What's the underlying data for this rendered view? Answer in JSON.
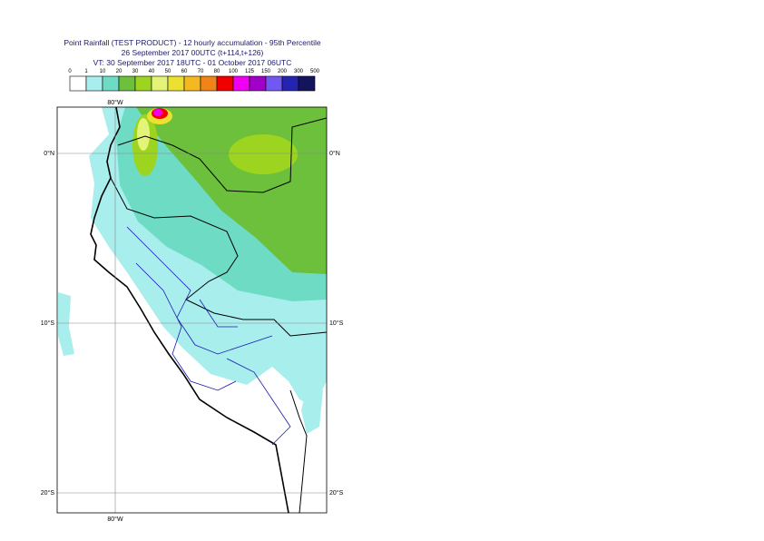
{
  "header": {
    "title_lines": [
      "Point Rainfall (TEST PRODUCT) - 12 hourly accumulation - 95th Percentile",
      "26 September 2017 00UTC (t+114,t+126)",
      "VT: 30 September 2017 18UTC - 01 October 2017 06UTC"
    ]
  },
  "legend": {
    "labels": [
      "0",
      "1",
      "10",
      "20",
      "30",
      "40",
      "50",
      "60",
      "70",
      "80",
      "100",
      "125",
      "150",
      "200",
      "300",
      "500"
    ],
    "colors": [
      "#ffffff",
      "#a8eeec",
      "#6edcc4",
      "#6cc03c",
      "#9cd420",
      "#e4f478",
      "#ece030",
      "#f4b820",
      "#f08418",
      "#f00000",
      "#f000f0",
      "#a000c8",
      "#7058f0",
      "#2424b0",
      "#14145c"
    ]
  },
  "map": {
    "lon_labels": [
      "80°W",
      "80°W"
    ],
    "lat_labels": [
      "0°N",
      "0°N",
      "10°S",
      "10°S",
      "20°S",
      "20°S"
    ]
  }
}
